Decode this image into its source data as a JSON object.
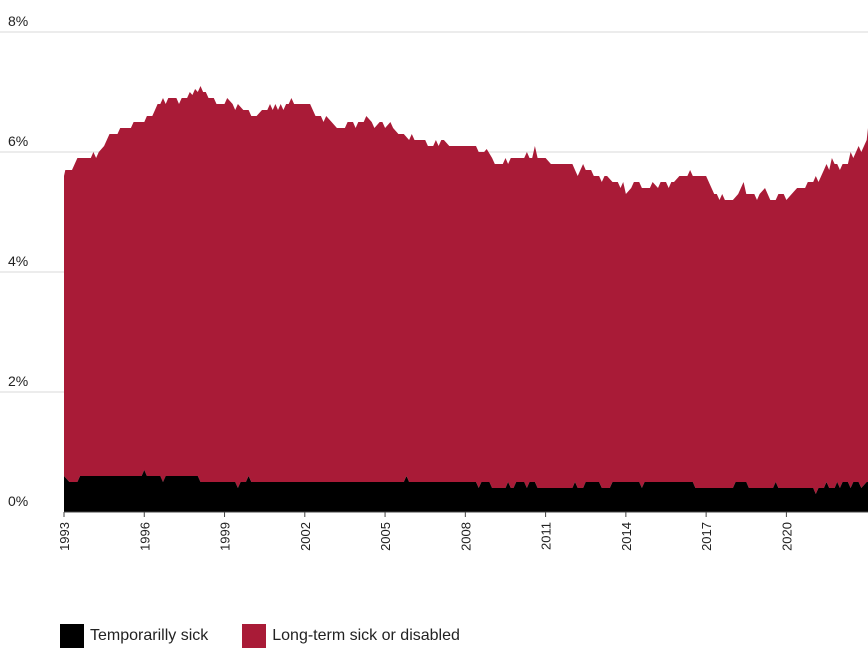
{
  "chart_data": {
    "type": "area",
    "stacked": true,
    "x_start": 1993,
    "x_end": 2023,
    "ylim": [
      0,
      8
    ],
    "yticks": [
      "0%",
      "2%",
      "4%",
      "6%",
      "8%"
    ],
    "ytick_values": [
      0,
      2,
      4,
      6,
      8
    ],
    "xticks": [
      "1993",
      "1996",
      "1999",
      "2002",
      "2005",
      "2008",
      "2011",
      "2014",
      "2017",
      "2020"
    ],
    "xtick_values": [
      1993,
      1996,
      1999,
      2002,
      2005,
      2008,
      2011,
      2014,
      2017,
      2020
    ],
    "grid": true,
    "legend_position": "bottom-left",
    "colors": {
      "temp": "#000000",
      "long": "#a91b37",
      "grid": "#d9d9d9",
      "axis": "#444444"
    },
    "series": [
      {
        "name": "Temporarilly sick",
        "color": "#000000",
        "points": [
          [
            1993.0,
            0.6
          ],
          [
            1993.2,
            0.5
          ],
          [
            1993.5,
            0.5
          ],
          [
            1993.6,
            0.6
          ],
          [
            1994.0,
            0.6
          ],
          [
            1995.0,
            0.6
          ],
          [
            1995.9,
            0.6
          ],
          [
            1996.0,
            0.7
          ],
          [
            1996.1,
            0.6
          ],
          [
            1996.6,
            0.6
          ],
          [
            1996.7,
            0.5
          ],
          [
            1996.8,
            0.6
          ],
          [
            1997.0,
            0.6
          ],
          [
            1998.0,
            0.6
          ],
          [
            1998.1,
            0.5
          ],
          [
            1999.0,
            0.5
          ],
          [
            1999.4,
            0.5
          ],
          [
            1999.5,
            0.4
          ],
          [
            1999.6,
            0.5
          ],
          [
            1999.8,
            0.5
          ],
          [
            1999.9,
            0.6
          ],
          [
            2000.0,
            0.5
          ],
          [
            2001.0,
            0.5
          ],
          [
            2003.0,
            0.5
          ],
          [
            2005.0,
            0.5
          ],
          [
            2005.7,
            0.5
          ],
          [
            2005.8,
            0.6
          ],
          [
            2005.9,
            0.5
          ],
          [
            2007.0,
            0.5
          ],
          [
            2008.4,
            0.5
          ],
          [
            2008.5,
            0.4
          ],
          [
            2008.6,
            0.5
          ],
          [
            2008.9,
            0.5
          ],
          [
            2009.0,
            0.4
          ],
          [
            2009.5,
            0.4
          ],
          [
            2009.6,
            0.5
          ],
          [
            2009.7,
            0.4
          ],
          [
            2009.8,
            0.4
          ],
          [
            2009.9,
            0.5
          ],
          [
            2010.2,
            0.5
          ],
          [
            2010.3,
            0.4
          ],
          [
            2010.4,
            0.5
          ],
          [
            2010.6,
            0.5
          ],
          [
            2010.7,
            0.4
          ],
          [
            2011.0,
            0.4
          ],
          [
            2012.0,
            0.4
          ],
          [
            2012.1,
            0.5
          ],
          [
            2012.2,
            0.4
          ],
          [
            2012.4,
            0.4
          ],
          [
            2012.5,
            0.5
          ],
          [
            2013.0,
            0.5
          ],
          [
            2013.1,
            0.4
          ],
          [
            2013.4,
            0.4
          ],
          [
            2013.5,
            0.5
          ],
          [
            2014.0,
            0.5
          ],
          [
            2014.5,
            0.5
          ],
          [
            2014.6,
            0.4
          ],
          [
            2014.7,
            0.5
          ],
          [
            2015.0,
            0.5
          ],
          [
            2016.5,
            0.5
          ],
          [
            2016.6,
            0.4
          ],
          [
            2017.0,
            0.4
          ],
          [
            2018.0,
            0.4
          ],
          [
            2018.1,
            0.5
          ],
          [
            2018.5,
            0.5
          ],
          [
            2018.6,
            0.4
          ],
          [
            2019.0,
            0.4
          ],
          [
            2019.5,
            0.4
          ],
          [
            2019.6,
            0.5
          ],
          [
            2019.7,
            0.4
          ],
          [
            2020.0,
            0.4
          ],
          [
            2021.0,
            0.4
          ],
          [
            2021.1,
            0.3
          ],
          [
            2021.2,
            0.4
          ],
          [
            2021.4,
            0.4
          ],
          [
            2021.5,
            0.5
          ],
          [
            2021.6,
            0.4
          ],
          [
            2021.8,
            0.4
          ],
          [
            2021.9,
            0.5
          ],
          [
            2022.0,
            0.4
          ],
          [
            2022.1,
            0.5
          ],
          [
            2022.3,
            0.5
          ],
          [
            2022.4,
            0.4
          ],
          [
            2022.5,
            0.5
          ],
          [
            2022.7,
            0.5
          ],
          [
            2022.8,
            0.4
          ],
          [
            2023.0,
            0.5
          ]
        ]
      },
      {
        "name": "Long-term sick or disabled",
        "color": "#a91b37",
        "total_points": [
          [
            1993.0,
            5.6
          ],
          [
            1993.05,
            5.7
          ],
          [
            1993.3,
            5.7
          ],
          [
            1993.5,
            5.9
          ],
          [
            1994.0,
            5.9
          ],
          [
            1994.1,
            6.0
          ],
          [
            1994.2,
            5.9
          ],
          [
            1994.3,
            6.0
          ],
          [
            1994.5,
            6.1
          ],
          [
            1994.7,
            6.3
          ],
          [
            1995.0,
            6.3
          ],
          [
            1995.1,
            6.4
          ],
          [
            1995.5,
            6.4
          ],
          [
            1995.6,
            6.5
          ],
          [
            1996.0,
            6.5
          ],
          [
            1996.1,
            6.6
          ],
          [
            1996.3,
            6.6
          ],
          [
            1996.4,
            6.7
          ],
          [
            1996.5,
            6.8
          ],
          [
            1996.6,
            6.8
          ],
          [
            1996.7,
            6.9
          ],
          [
            1996.8,
            6.8
          ],
          [
            1996.9,
            6.9
          ],
          [
            1997.0,
            6.9
          ],
          [
            1997.2,
            6.9
          ],
          [
            1997.3,
            6.8
          ],
          [
            1997.4,
            6.9
          ],
          [
            1997.6,
            6.9
          ],
          [
            1997.7,
            7.0
          ],
          [
            1997.8,
            6.95
          ],
          [
            1997.9,
            7.05
          ],
          [
            1998.0,
            7.0
          ],
          [
            1998.1,
            7.1
          ],
          [
            1998.2,
            7.0
          ],
          [
            1998.3,
            7.0
          ],
          [
            1998.4,
            6.9
          ],
          [
            1998.6,
            6.9
          ],
          [
            1998.7,
            6.8
          ],
          [
            1999.0,
            6.8
          ],
          [
            1999.1,
            6.9
          ],
          [
            1999.3,
            6.8
          ],
          [
            1999.4,
            6.7
          ],
          [
            1999.5,
            6.8
          ],
          [
            1999.7,
            6.7
          ],
          [
            1999.9,
            6.7
          ],
          [
            2000.0,
            6.6
          ],
          [
            2000.2,
            6.6
          ],
          [
            2000.4,
            6.7
          ],
          [
            2000.6,
            6.7
          ],
          [
            2000.7,
            6.8
          ],
          [
            2000.8,
            6.7
          ],
          [
            2000.9,
            6.8
          ],
          [
            2001.0,
            6.7
          ],
          [
            2001.1,
            6.8
          ],
          [
            2001.2,
            6.7
          ],
          [
            2001.3,
            6.8
          ],
          [
            2001.4,
            6.8
          ],
          [
            2001.5,
            6.9
          ],
          [
            2001.6,
            6.8
          ],
          [
            2001.8,
            6.8
          ],
          [
            2002.0,
            6.8
          ],
          [
            2002.2,
            6.8
          ],
          [
            2002.4,
            6.6
          ],
          [
            2002.6,
            6.6
          ],
          [
            2002.7,
            6.5
          ],
          [
            2002.8,
            6.6
          ],
          [
            2003.0,
            6.5
          ],
          [
            2003.2,
            6.4
          ],
          [
            2003.5,
            6.4
          ],
          [
            2003.6,
            6.5
          ],
          [
            2003.8,
            6.5
          ],
          [
            2003.9,
            6.4
          ],
          [
            2004.0,
            6.5
          ],
          [
            2004.2,
            6.5
          ],
          [
            2004.3,
            6.6
          ],
          [
            2004.5,
            6.5
          ],
          [
            2004.6,
            6.4
          ],
          [
            2004.8,
            6.5
          ],
          [
            2004.9,
            6.5
          ],
          [
            2005.0,
            6.4
          ],
          [
            2005.2,
            6.5
          ],
          [
            2005.3,
            6.4
          ],
          [
            2005.5,
            6.3
          ],
          [
            2005.7,
            6.3
          ],
          [
            2005.9,
            6.2
          ],
          [
            2006.0,
            6.3
          ],
          [
            2006.1,
            6.2
          ],
          [
            2006.5,
            6.2
          ],
          [
            2006.6,
            6.1
          ],
          [
            2006.8,
            6.1
          ],
          [
            2006.9,
            6.2
          ],
          [
            2007.0,
            6.1
          ],
          [
            2007.1,
            6.2
          ],
          [
            2007.2,
            6.2
          ],
          [
            2007.4,
            6.1
          ],
          [
            2008.0,
            6.1
          ],
          [
            2008.4,
            6.1
          ],
          [
            2008.5,
            6.0
          ],
          [
            2008.7,
            6.0
          ],
          [
            2008.8,
            6.05
          ],
          [
            2009.0,
            5.9
          ],
          [
            2009.1,
            5.8
          ],
          [
            2009.4,
            5.8
          ],
          [
            2009.5,
            5.9
          ],
          [
            2009.6,
            5.8
          ],
          [
            2009.7,
            5.9
          ],
          [
            2009.9,
            5.9
          ],
          [
            2010.0,
            5.9
          ],
          [
            2010.2,
            5.9
          ],
          [
            2010.3,
            6.0
          ],
          [
            2010.4,
            5.9
          ],
          [
            2010.5,
            5.9
          ],
          [
            2010.6,
            6.1
          ],
          [
            2010.7,
            5.9
          ],
          [
            2010.9,
            5.9
          ],
          [
            2011.0,
            5.9
          ],
          [
            2011.2,
            5.8
          ],
          [
            2011.4,
            5.8
          ],
          [
            2012.0,
            5.8
          ],
          [
            2012.1,
            5.7
          ],
          [
            2012.2,
            5.6
          ],
          [
            2012.3,
            5.7
          ],
          [
            2012.4,
            5.8
          ],
          [
            2012.5,
            5.7
          ],
          [
            2012.7,
            5.7
          ],
          [
            2012.8,
            5.6
          ],
          [
            2013.0,
            5.6
          ],
          [
            2013.1,
            5.5
          ],
          [
            2013.2,
            5.6
          ],
          [
            2013.3,
            5.6
          ],
          [
            2013.5,
            5.5
          ],
          [
            2013.7,
            5.5
          ],
          [
            2013.8,
            5.4
          ],
          [
            2013.9,
            5.5
          ],
          [
            2014.0,
            5.3
          ],
          [
            2014.2,
            5.4
          ],
          [
            2014.3,
            5.5
          ],
          [
            2014.5,
            5.5
          ],
          [
            2014.6,
            5.4
          ],
          [
            2014.9,
            5.4
          ],
          [
            2015.0,
            5.5
          ],
          [
            2015.2,
            5.4
          ],
          [
            2015.3,
            5.5
          ],
          [
            2015.5,
            5.5
          ],
          [
            2015.6,
            5.4
          ],
          [
            2015.7,
            5.5
          ],
          [
            2015.8,
            5.5
          ],
          [
            2016.0,
            5.6
          ],
          [
            2016.3,
            5.6
          ],
          [
            2016.4,
            5.7
          ],
          [
            2016.5,
            5.6
          ],
          [
            2017.0,
            5.6
          ],
          [
            2017.1,
            5.5
          ],
          [
            2017.2,
            5.4
          ],
          [
            2017.3,
            5.3
          ],
          [
            2017.4,
            5.3
          ],
          [
            2017.5,
            5.2
          ],
          [
            2017.6,
            5.3
          ],
          [
            2017.7,
            5.2
          ],
          [
            2018.0,
            5.2
          ],
          [
            2018.2,
            5.3
          ],
          [
            2018.4,
            5.5
          ],
          [
            2018.5,
            5.3
          ],
          [
            2018.6,
            5.3
          ],
          [
            2018.8,
            5.3
          ],
          [
            2018.9,
            5.2
          ],
          [
            2019.0,
            5.3
          ],
          [
            2019.2,
            5.4
          ],
          [
            2019.4,
            5.2
          ],
          [
            2019.6,
            5.2
          ],
          [
            2019.7,
            5.3
          ],
          [
            2019.9,
            5.3
          ],
          [
            2020.0,
            5.2
          ],
          [
            2020.2,
            5.3
          ],
          [
            2020.4,
            5.4
          ],
          [
            2020.5,
            5.4
          ],
          [
            2020.7,
            5.4
          ],
          [
            2020.8,
            5.5
          ],
          [
            2021.0,
            5.5
          ],
          [
            2021.1,
            5.6
          ],
          [
            2021.2,
            5.5
          ],
          [
            2021.4,
            5.7
          ],
          [
            2021.5,
            5.8
          ],
          [
            2021.6,
            5.7
          ],
          [
            2021.7,
            5.9
          ],
          [
            2021.8,
            5.8
          ],
          [
            2021.9,
            5.8
          ],
          [
            2022.0,
            5.7
          ],
          [
            2022.1,
            5.8
          ],
          [
            2022.3,
            5.8
          ],
          [
            2022.4,
            6.0
          ],
          [
            2022.5,
            5.9
          ],
          [
            2022.6,
            6.0
          ],
          [
            2022.7,
            6.1
          ],
          [
            2022.8,
            6.0
          ],
          [
            2022.9,
            6.1
          ],
          [
            2023.0,
            6.2
          ],
          [
            2023.05,
            6.4
          ]
        ]
      }
    ]
  },
  "legend": {
    "items": [
      {
        "label": "Temporarilly sick",
        "color": "#000000"
      },
      {
        "label": "Long-term sick or disabled",
        "color": "#a91b37"
      }
    ]
  }
}
